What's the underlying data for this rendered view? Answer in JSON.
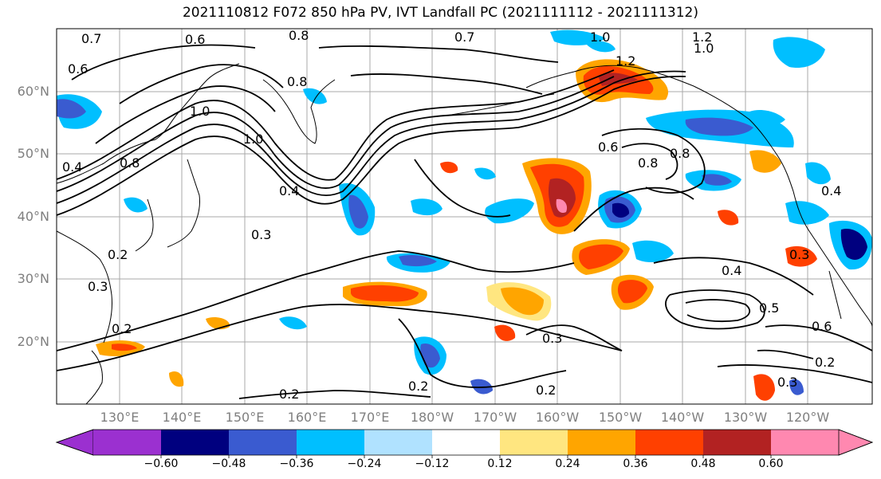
{
  "title": "2021110812 F072 850 hPa PV, IVT Landfall PC (2021111112 - 2021111312)",
  "map": {
    "lat_labels": [
      "60°N",
      "50°N",
      "40°N",
      "30°N",
      "20°N"
    ],
    "lon_labels": [
      "130°E",
      "140°E",
      "150°E",
      "160°E",
      "170°E",
      "180°W",
      "170°W",
      "160°W",
      "150°W",
      "140°W",
      "130°W",
      "120°W"
    ],
    "contour_labels": [
      "0.7",
      "0.6",
      "0.8",
      "0.7",
      "1.0",
      "1.2",
      "1.2",
      "1.0",
      "0.6",
      "0.8",
      "1.0",
      "0.8",
      "0.4",
      "1.0",
      "0.4",
      "0.6",
      "0.8",
      "0.8",
      "0.3",
      "0.2",
      "0.3",
      "0.2",
      "0.2",
      "0.2",
      "0.2",
      "0.3",
      "0.4",
      "0.5",
      "0.6",
      "0.2",
      "0.3",
      "0.4",
      "0.3"
    ]
  },
  "colorbar": {
    "ticks": [
      "−0.60",
      "−0.48",
      "−0.36",
      "−0.24",
      "−0.12",
      "0.12",
      "0.24",
      "0.36",
      "0.48",
      "0.60"
    ],
    "colors": [
      "#9b30d0",
      "#00007f",
      "#3a5bd0",
      "#00bfff",
      "#b0e2ff",
      "#ffffff",
      "#ffe680",
      "#ffa500",
      "#ff4000",
      "#b22222",
      "#ff88b0"
    ]
  }
}
